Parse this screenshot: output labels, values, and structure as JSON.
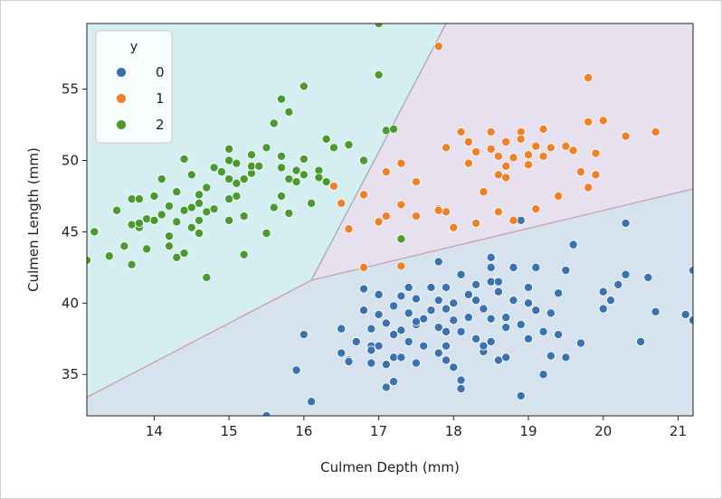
{
  "chart_data": {
    "type": "scatter",
    "title": "",
    "xlabel": "Culmen Depth (mm)",
    "ylabel": "Culmen Length (mm)",
    "xlim": [
      13.1,
      21.2
    ],
    "ylim": [
      32.1,
      59.6
    ],
    "xticks": [
      14,
      15,
      16,
      17,
      18,
      19,
      20,
      21
    ],
    "yticks": [
      35,
      40,
      45,
      50,
      55
    ],
    "grid": false,
    "legend": {
      "title": "y",
      "placement": "top-left"
    },
    "regions": [
      {
        "name": "2",
        "color": "#d5eef2",
        "polygon": [
          [
            13.1,
            33.4
          ],
          [
            16.1,
            41.6
          ],
          [
            17.9,
            59.6
          ],
          [
            13.1,
            59.6
          ]
        ]
      },
      {
        "name": "1",
        "color": "#e6e0ef",
        "polygon": [
          [
            16.1,
            41.6
          ],
          [
            21.2,
            48.0
          ],
          [
            21.2,
            59.6
          ],
          [
            17.9,
            59.6
          ]
        ]
      },
      {
        "name": "0",
        "color": "#d6e3ef",
        "polygon": [
          [
            13.1,
            33.4
          ],
          [
            16.1,
            41.6
          ],
          [
            21.2,
            48.0
          ],
          [
            21.2,
            32.1
          ],
          [
            13.1,
            32.1
          ]
        ]
      }
    ],
    "boundaries": [
      {
        "points": [
          [
            13.1,
            33.4
          ],
          [
            16.1,
            41.6
          ]
        ],
        "color": "#cc9999"
      },
      {
        "points": [
          [
            16.1,
            41.6
          ],
          [
            17.9,
            59.6
          ]
        ],
        "color": "#a0a6a6"
      },
      {
        "points": [
          [
            16.1,
            41.6
          ],
          [
            21.2,
            48.0
          ]
        ],
        "color": "#c69aa8"
      }
    ],
    "series": [
      {
        "name": "0",
        "color": "#3a72b0",
        "points": [
          [
            15.5,
            32.1
          ],
          [
            16.1,
            33.1
          ],
          [
            15.9,
            35.3
          ],
          [
            16.0,
            37.8
          ],
          [
            16.5,
            38.2
          ],
          [
            16.5,
            36.5
          ],
          [
            16.6,
            36.0
          ],
          [
            16.6,
            35.9
          ],
          [
            16.7,
            37.3
          ],
          [
            16.8,
            39.5
          ],
          [
            16.8,
            41.0
          ],
          [
            16.9,
            38.2
          ],
          [
            16.9,
            37.0
          ],
          [
            16.9,
            35.8
          ],
          [
            17.0,
            37.0
          ],
          [
            17.0,
            39.2
          ],
          [
            17.0,
            40.6
          ],
          [
            17.1,
            35.7
          ],
          [
            17.1,
            38.6
          ],
          [
            17.1,
            34.1
          ],
          [
            17.2,
            34.5
          ],
          [
            17.2,
            36.2
          ],
          [
            17.2,
            37.8
          ],
          [
            17.2,
            39.8
          ],
          [
            17.3,
            40.5
          ],
          [
            17.3,
            38.1
          ],
          [
            17.3,
            36.2
          ],
          [
            17.4,
            41.1
          ],
          [
            17.4,
            39.3
          ],
          [
            17.4,
            37.3
          ],
          [
            17.5,
            35.8
          ],
          [
            17.5,
            38.5
          ],
          [
            17.5,
            40.3
          ],
          [
            17.6,
            38.9
          ],
          [
            17.6,
            37.0
          ],
          [
            17.7,
            39.5
          ],
          [
            17.7,
            41.1
          ],
          [
            17.8,
            42.9
          ],
          [
            17.8,
            38.3
          ],
          [
            17.8,
            40.2
          ],
          [
            17.8,
            36.5
          ],
          [
            17.9,
            36.0
          ],
          [
            17.9,
            37.0
          ],
          [
            17.9,
            39.6
          ],
          [
            17.9,
            41.1
          ],
          [
            18.0,
            40.0
          ],
          [
            18.0,
            38.8
          ],
          [
            18.0,
            35.5
          ],
          [
            18.1,
            42.0
          ],
          [
            18.1,
            38.0
          ],
          [
            18.1,
            34.6
          ],
          [
            18.1,
            34.0
          ],
          [
            18.2,
            40.6
          ],
          [
            18.2,
            39.0
          ],
          [
            18.3,
            37.5
          ],
          [
            18.3,
            41.3
          ],
          [
            18.3,
            40.2
          ],
          [
            18.4,
            36.6
          ],
          [
            18.4,
            39.6
          ],
          [
            18.5,
            42.5
          ],
          [
            18.5,
            43.2
          ],
          [
            18.5,
            41.5
          ],
          [
            18.5,
            38.9
          ],
          [
            18.5,
            37.3
          ],
          [
            18.6,
            36.0
          ],
          [
            18.6,
            40.8
          ],
          [
            18.6,
            41.5
          ],
          [
            18.7,
            39.0
          ],
          [
            18.7,
            38.3
          ],
          [
            18.7,
            36.2
          ],
          [
            18.8,
            40.2
          ],
          [
            18.8,
            42.5
          ],
          [
            18.9,
            45.8
          ],
          [
            18.9,
            38.5
          ],
          [
            19.0,
            37.5
          ],
          [
            19.0,
            40.0
          ],
          [
            19.0,
            41.1
          ],
          [
            19.1,
            39.5
          ],
          [
            19.1,
            42.5
          ],
          [
            19.2,
            38.0
          ],
          [
            19.2,
            35.0
          ],
          [
            19.3,
            36.3
          ],
          [
            19.3,
            39.3
          ],
          [
            19.4,
            40.7
          ],
          [
            19.4,
            37.8
          ],
          [
            19.5,
            42.3
          ],
          [
            19.5,
            36.2
          ],
          [
            19.6,
            44.1
          ],
          [
            20.0,
            39.6
          ],
          [
            20.0,
            40.8
          ],
          [
            20.1,
            40.2
          ],
          [
            20.2,
            41.3
          ],
          [
            20.3,
            42.0
          ],
          [
            20.3,
            45.6
          ],
          [
            20.6,
            41.8
          ],
          [
            20.7,
            39.4
          ],
          [
            20.5,
            37.3
          ],
          [
            21.1,
            39.2
          ],
          [
            21.2,
            42.3
          ],
          [
            21.2,
            38.8
          ],
          [
            18.9,
            33.5
          ],
          [
            19.7,
            37.2
          ],
          [
            17.5,
            38.7
          ],
          [
            18.4,
            37.0
          ],
          [
            16.9,
            36.7
          ],
          [
            17.9,
            38.0
          ]
        ]
      },
      {
        "name": "1",
        "color": "#ee8125",
        "points": [
          [
            16.5,
            47.0
          ],
          [
            16.6,
            45.2
          ],
          [
            16.8,
            42.5
          ],
          [
            16.8,
            47.6
          ],
          [
            17.0,
            45.7
          ],
          [
            17.1,
            46.1
          ],
          [
            17.3,
            42.6
          ],
          [
            17.3,
            46.9
          ],
          [
            17.3,
            49.8
          ],
          [
            17.5,
            46.1
          ],
          [
            17.5,
            48.5
          ],
          [
            17.8,
            58.0
          ],
          [
            17.8,
            46.6
          ],
          [
            17.9,
            46.4
          ],
          [
            17.9,
            50.9
          ],
          [
            18.0,
            45.3
          ],
          [
            18.1,
            52.0
          ],
          [
            18.2,
            51.3
          ],
          [
            18.2,
            49.8
          ],
          [
            18.3,
            50.6
          ],
          [
            18.4,
            47.8
          ],
          [
            18.5,
            50.8
          ],
          [
            18.6,
            46.4
          ],
          [
            18.6,
            49.0
          ],
          [
            18.7,
            49.6
          ],
          [
            18.7,
            51.3
          ],
          [
            18.8,
            50.2
          ],
          [
            18.8,
            45.8
          ],
          [
            18.9,
            52.0
          ],
          [
            19.0,
            49.7
          ],
          [
            19.0,
            50.4
          ],
          [
            19.1,
            51.0
          ],
          [
            19.1,
            46.6
          ],
          [
            19.2,
            50.3
          ],
          [
            19.4,
            47.5
          ],
          [
            19.5,
            51.0
          ],
          [
            19.6,
            50.7
          ],
          [
            19.7,
            49.2
          ],
          [
            19.8,
            52.7
          ],
          [
            19.8,
            48.1
          ],
          [
            19.9,
            50.5
          ],
          [
            20.0,
            52.8
          ],
          [
            20.3,
            51.7
          ],
          [
            20.7,
            52.0
          ],
          [
            19.8,
            55.8
          ],
          [
            18.9,
            51.5
          ],
          [
            18.5,
            52.0
          ],
          [
            17.8,
            46.5
          ],
          [
            16.4,
            48.2
          ],
          [
            18.7,
            48.8
          ],
          [
            19.3,
            50.9
          ],
          [
            19.9,
            49.0
          ],
          [
            18.3,
            45.6
          ],
          [
            17.1,
            49.2
          ],
          [
            18.6,
            50.3
          ],
          [
            19.2,
            52.2
          ]
        ]
      },
      {
        "name": "2",
        "color": "#4a9a2f",
        "points": [
          [
            13.1,
            43.0
          ],
          [
            13.2,
            45.0
          ],
          [
            13.4,
            43.3
          ],
          [
            13.5,
            46.5
          ],
          [
            13.6,
            44.0
          ],
          [
            13.7,
            45.5
          ],
          [
            13.7,
            47.3
          ],
          [
            13.7,
            42.7
          ],
          [
            13.8,
            45.3
          ],
          [
            13.8,
            47.3
          ],
          [
            13.9,
            45.9
          ],
          [
            13.9,
            43.8
          ],
          [
            14.0,
            45.8
          ],
          [
            14.0,
            47.5
          ],
          [
            14.1,
            46.2
          ],
          [
            14.1,
            48.7
          ],
          [
            14.2,
            46.8
          ],
          [
            14.2,
            44.7
          ],
          [
            14.3,
            45.7
          ],
          [
            14.3,
            47.8
          ],
          [
            14.3,
            43.2
          ],
          [
            14.4,
            50.1
          ],
          [
            14.4,
            46.5
          ],
          [
            14.4,
            43.5
          ],
          [
            14.5,
            45.3
          ],
          [
            14.5,
            46.7
          ],
          [
            14.5,
            49.0
          ],
          [
            14.6,
            47.6
          ],
          [
            14.6,
            45.8
          ],
          [
            14.6,
            44.9
          ],
          [
            14.7,
            48.1
          ],
          [
            14.7,
            46.4
          ],
          [
            14.7,
            41.8
          ],
          [
            14.8,
            49.5
          ],
          [
            14.8,
            46.6
          ],
          [
            15.0,
            50.0
          ],
          [
            15.0,
            50.8
          ],
          [
            15.0,
            48.7
          ],
          [
            15.0,
            47.3
          ],
          [
            15.0,
            45.8
          ],
          [
            15.1,
            49.8
          ],
          [
            15.1,
            48.4
          ],
          [
            15.1,
            47.5
          ],
          [
            15.2,
            48.7
          ],
          [
            15.2,
            46.1
          ],
          [
            15.2,
            43.4
          ],
          [
            15.3,
            50.4
          ],
          [
            15.3,
            49.1
          ],
          [
            15.5,
            50.9
          ],
          [
            15.5,
            44.9
          ],
          [
            15.6,
            52.6
          ],
          [
            15.6,
            46.7
          ],
          [
            15.7,
            47.5
          ],
          [
            15.7,
            49.5
          ],
          [
            15.7,
            50.3
          ],
          [
            15.7,
            54.3
          ],
          [
            15.8,
            53.4
          ],
          [
            15.8,
            48.7
          ],
          [
            15.8,
            46.3
          ],
          [
            15.9,
            48.5
          ],
          [
            15.9,
            49.3
          ],
          [
            16.0,
            50.1
          ],
          [
            16.0,
            55.2
          ],
          [
            16.1,
            47.0
          ],
          [
            16.2,
            49.3
          ],
          [
            16.2,
            48.8
          ],
          [
            16.3,
            51.5
          ],
          [
            16.4,
            50.9
          ],
          [
            16.6,
            51.1
          ],
          [
            16.8,
            50.0
          ],
          [
            17.0,
            56.0
          ],
          [
            17.0,
            59.6
          ],
          [
            17.1,
            52.1
          ],
          [
            17.2,
            52.2
          ],
          [
            17.3,
            44.5
          ],
          [
            16.3,
            48.5
          ],
          [
            15.3,
            49.6
          ],
          [
            14.9,
            49.2
          ],
          [
            14.2,
            44.0
          ],
          [
            13.8,
            45.6
          ],
          [
            15.4,
            49.6
          ],
          [
            16.0,
            49.0
          ],
          [
            14.6,
            47.0
          ]
        ]
      }
    ]
  }
}
